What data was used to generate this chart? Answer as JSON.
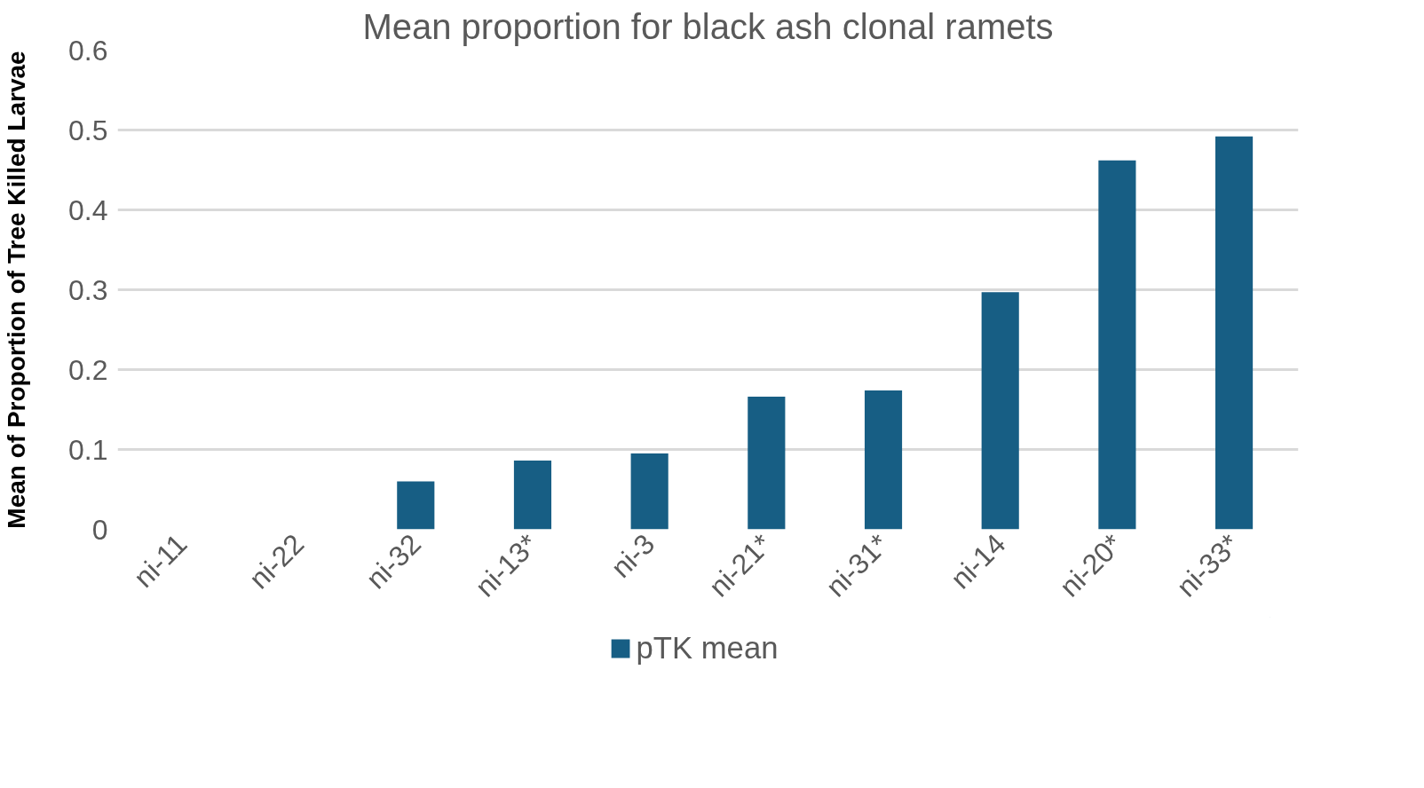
{
  "chart_data": {
    "type": "bar",
    "title": "Mean proportion for black ash clonal ramets",
    "ylabel": "Mean of Proportion of Tree Killed Larvae",
    "categories": [
      "ni-11",
      "ni-22",
      "ni-32",
      "ni-13*",
      "ni-3",
      "ni-21*",
      "ni-31*",
      "ni-14",
      "ni-20*",
      "ni-33*"
    ],
    "series": [
      {
        "name": "pTK mean",
        "color": "#175e84",
        "values": [
          0,
          0,
          0.06,
          0.086,
          0.095,
          0.166,
          0.174,
          0.297,
          0.462,
          0.492
        ]
      }
    ],
    "ylim": [
      0,
      0.6
    ],
    "yticks": [
      0,
      0.1,
      0.2,
      0.3,
      0.4,
      0.5,
      0.6
    ],
    "grid": "y",
    "legend": "bottom"
  }
}
